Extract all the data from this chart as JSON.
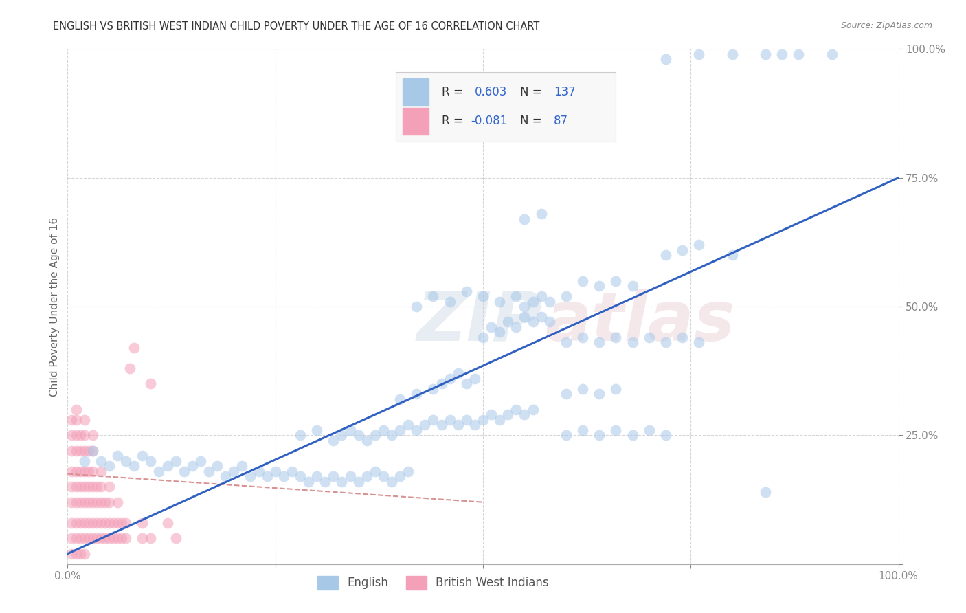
{
  "title": "ENGLISH VS BRITISH WEST INDIAN CHILD POVERTY UNDER THE AGE OF 16 CORRELATION CHART",
  "source": "Source: ZipAtlas.com",
  "ylabel": "Child Poverty Under the Age of 16",
  "xlim": [
    0,
    1
  ],
  "ylim": [
    0,
    1
  ],
  "english_R": 0.603,
  "english_N": 137,
  "bwi_R": -0.081,
  "bwi_N": 87,
  "english_color": "#a8c8e8",
  "bwi_color": "#f4a0b8",
  "english_line_color": "#3060c0",
  "bwi_line_color": "#d89090",
  "background_color": "#ffffff",
  "eng_line": [
    0.0,
    0.02,
    1.0,
    0.75
  ],
  "bwi_line": [
    0.0,
    0.175,
    0.5,
    0.12
  ],
  "english_scatter": [
    [
      0.02,
      0.2
    ],
    [
      0.03,
      0.22
    ],
    [
      0.04,
      0.2
    ],
    [
      0.05,
      0.19
    ],
    [
      0.06,
      0.21
    ],
    [
      0.07,
      0.2
    ],
    [
      0.08,
      0.19
    ],
    [
      0.09,
      0.21
    ],
    [
      0.1,
      0.2
    ],
    [
      0.11,
      0.18
    ],
    [
      0.12,
      0.19
    ],
    [
      0.13,
      0.2
    ],
    [
      0.14,
      0.18
    ],
    [
      0.15,
      0.19
    ],
    [
      0.16,
      0.2
    ],
    [
      0.17,
      0.18
    ],
    [
      0.18,
      0.19
    ],
    [
      0.19,
      0.17
    ],
    [
      0.2,
      0.18
    ],
    [
      0.21,
      0.19
    ],
    [
      0.22,
      0.17
    ],
    [
      0.23,
      0.18
    ],
    [
      0.24,
      0.17
    ],
    [
      0.25,
      0.18
    ],
    [
      0.26,
      0.17
    ],
    [
      0.27,
      0.18
    ],
    [
      0.28,
      0.17
    ],
    [
      0.29,
      0.16
    ],
    [
      0.3,
      0.17
    ],
    [
      0.31,
      0.16
    ],
    [
      0.32,
      0.17
    ],
    [
      0.33,
      0.16
    ],
    [
      0.34,
      0.17
    ],
    [
      0.35,
      0.16
    ],
    [
      0.36,
      0.17
    ],
    [
      0.37,
      0.18
    ],
    [
      0.38,
      0.17
    ],
    [
      0.39,
      0.16
    ],
    [
      0.4,
      0.17
    ],
    [
      0.41,
      0.18
    ],
    [
      0.28,
      0.25
    ],
    [
      0.3,
      0.26
    ],
    [
      0.32,
      0.24
    ],
    [
      0.33,
      0.25
    ],
    [
      0.34,
      0.26
    ],
    [
      0.35,
      0.25
    ],
    [
      0.36,
      0.24
    ],
    [
      0.37,
      0.25
    ],
    [
      0.38,
      0.26
    ],
    [
      0.39,
      0.25
    ],
    [
      0.4,
      0.26
    ],
    [
      0.41,
      0.27
    ],
    [
      0.42,
      0.26
    ],
    [
      0.43,
      0.27
    ],
    [
      0.44,
      0.28
    ],
    [
      0.45,
      0.27
    ],
    [
      0.46,
      0.28
    ],
    [
      0.47,
      0.27
    ],
    [
      0.48,
      0.28
    ],
    [
      0.49,
      0.27
    ],
    [
      0.5,
      0.28
    ],
    [
      0.51,
      0.29
    ],
    [
      0.52,
      0.28
    ],
    [
      0.53,
      0.29
    ],
    [
      0.54,
      0.3
    ],
    [
      0.55,
      0.29
    ],
    [
      0.56,
      0.3
    ],
    [
      0.4,
      0.32
    ],
    [
      0.42,
      0.33
    ],
    [
      0.44,
      0.34
    ],
    [
      0.45,
      0.35
    ],
    [
      0.46,
      0.36
    ],
    [
      0.47,
      0.37
    ],
    [
      0.48,
      0.35
    ],
    [
      0.49,
      0.36
    ],
    [
      0.5,
      0.44
    ],
    [
      0.51,
      0.46
    ],
    [
      0.52,
      0.45
    ],
    [
      0.53,
      0.47
    ],
    [
      0.54,
      0.46
    ],
    [
      0.55,
      0.48
    ],
    [
      0.56,
      0.47
    ],
    [
      0.57,
      0.48
    ],
    [
      0.58,
      0.47
    ],
    [
      0.42,
      0.5
    ],
    [
      0.44,
      0.52
    ],
    [
      0.46,
      0.51
    ],
    [
      0.48,
      0.53
    ],
    [
      0.5,
      0.52
    ],
    [
      0.52,
      0.51
    ],
    [
      0.54,
      0.52
    ],
    [
      0.55,
      0.5
    ],
    [
      0.56,
      0.51
    ],
    [
      0.57,
      0.52
    ],
    [
      0.58,
      0.51
    ],
    [
      0.6,
      0.52
    ],
    [
      0.62,
      0.55
    ],
    [
      0.64,
      0.54
    ],
    [
      0.66,
      0.55
    ],
    [
      0.68,
      0.54
    ],
    [
      0.6,
      0.43
    ],
    [
      0.62,
      0.44
    ],
    [
      0.64,
      0.43
    ],
    [
      0.66,
      0.44
    ],
    [
      0.68,
      0.43
    ],
    [
      0.7,
      0.44
    ],
    [
      0.72,
      0.43
    ],
    [
      0.74,
      0.44
    ],
    [
      0.76,
      0.43
    ],
    [
      0.6,
      0.33
    ],
    [
      0.62,
      0.34
    ],
    [
      0.64,
      0.33
    ],
    [
      0.66,
      0.34
    ],
    [
      0.55,
      0.67
    ],
    [
      0.57,
      0.68
    ],
    [
      0.59,
      0.88
    ],
    [
      0.6,
      0.25
    ],
    [
      0.62,
      0.26
    ],
    [
      0.64,
      0.25
    ],
    [
      0.66,
      0.26
    ],
    [
      0.68,
      0.25
    ],
    [
      0.7,
      0.26
    ],
    [
      0.72,
      0.25
    ],
    [
      0.72,
      0.6
    ],
    [
      0.74,
      0.61
    ],
    [
      0.76,
      0.62
    ],
    [
      0.8,
      0.6
    ],
    [
      0.84,
      0.14
    ],
    [
      0.72,
      0.98
    ],
    [
      0.76,
      0.99
    ],
    [
      0.8,
      0.99
    ],
    [
      0.84,
      0.99
    ],
    [
      0.86,
      0.99
    ],
    [
      0.88,
      0.99
    ],
    [
      0.92,
      0.99
    ]
  ],
  "bwi_scatter": [
    [
      0.005,
      0.02
    ],
    [
      0.005,
      0.05
    ],
    [
      0.005,
      0.08
    ],
    [
      0.005,
      0.12
    ],
    [
      0.005,
      0.15
    ],
    [
      0.005,
      0.18
    ],
    [
      0.005,
      0.22
    ],
    [
      0.005,
      0.25
    ],
    [
      0.005,
      0.28
    ],
    [
      0.01,
      0.02
    ],
    [
      0.01,
      0.05
    ],
    [
      0.01,
      0.08
    ],
    [
      0.01,
      0.12
    ],
    [
      0.01,
      0.15
    ],
    [
      0.01,
      0.18
    ],
    [
      0.01,
      0.22
    ],
    [
      0.01,
      0.25
    ],
    [
      0.01,
      0.28
    ],
    [
      0.01,
      0.3
    ],
    [
      0.015,
      0.02
    ],
    [
      0.015,
      0.05
    ],
    [
      0.015,
      0.08
    ],
    [
      0.015,
      0.12
    ],
    [
      0.015,
      0.15
    ],
    [
      0.015,
      0.18
    ],
    [
      0.015,
      0.22
    ],
    [
      0.015,
      0.25
    ],
    [
      0.02,
      0.02
    ],
    [
      0.02,
      0.05
    ],
    [
      0.02,
      0.08
    ],
    [
      0.02,
      0.12
    ],
    [
      0.02,
      0.15
    ],
    [
      0.02,
      0.18
    ],
    [
      0.02,
      0.22
    ],
    [
      0.02,
      0.25
    ],
    [
      0.02,
      0.28
    ],
    [
      0.025,
      0.05
    ],
    [
      0.025,
      0.08
    ],
    [
      0.025,
      0.12
    ],
    [
      0.025,
      0.15
    ],
    [
      0.025,
      0.18
    ],
    [
      0.025,
      0.22
    ],
    [
      0.03,
      0.05
    ],
    [
      0.03,
      0.08
    ],
    [
      0.03,
      0.12
    ],
    [
      0.03,
      0.15
    ],
    [
      0.03,
      0.18
    ],
    [
      0.03,
      0.22
    ],
    [
      0.03,
      0.25
    ],
    [
      0.035,
      0.05
    ],
    [
      0.035,
      0.08
    ],
    [
      0.035,
      0.12
    ],
    [
      0.035,
      0.15
    ],
    [
      0.04,
      0.05
    ],
    [
      0.04,
      0.08
    ],
    [
      0.04,
      0.12
    ],
    [
      0.04,
      0.15
    ],
    [
      0.04,
      0.18
    ],
    [
      0.045,
      0.05
    ],
    [
      0.045,
      0.08
    ],
    [
      0.045,
      0.12
    ],
    [
      0.05,
      0.05
    ],
    [
      0.05,
      0.08
    ],
    [
      0.05,
      0.12
    ],
    [
      0.05,
      0.15
    ],
    [
      0.055,
      0.05
    ],
    [
      0.055,
      0.08
    ],
    [
      0.06,
      0.05
    ],
    [
      0.06,
      0.08
    ],
    [
      0.06,
      0.12
    ],
    [
      0.065,
      0.05
    ],
    [
      0.065,
      0.08
    ],
    [
      0.07,
      0.05
    ],
    [
      0.07,
      0.08
    ],
    [
      0.075,
      0.38
    ],
    [
      0.08,
      0.42
    ],
    [
      0.09,
      0.05
    ],
    [
      0.09,
      0.08
    ],
    [
      0.1,
      0.05
    ],
    [
      0.1,
      0.35
    ],
    [
      0.12,
      0.08
    ],
    [
      0.13,
      0.05
    ]
  ]
}
